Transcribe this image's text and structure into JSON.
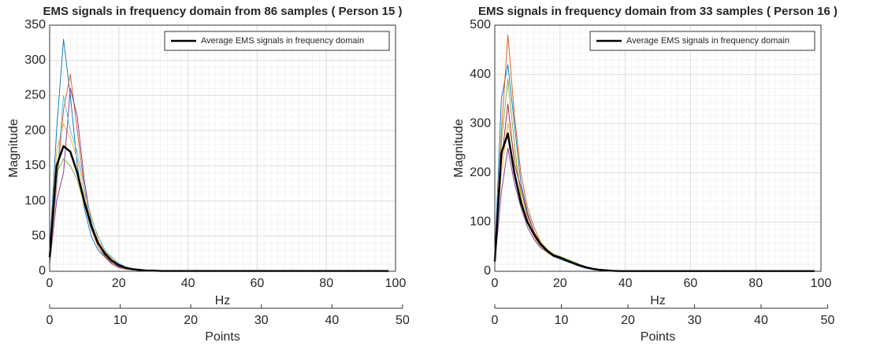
{
  "chart_data": [
    {
      "type": "line",
      "title": "EMS signals in frequency domain from 86 samples ( Person 15 )",
      "xlabel": "Hz",
      "ylabel": "Magnitude",
      "x2label": "Points",
      "x": [
        0,
        2,
        4,
        6,
        8,
        10,
        12,
        14,
        16,
        18,
        20,
        22,
        24,
        26,
        28,
        30,
        32,
        34,
        36,
        38,
        40,
        50,
        60,
        70,
        80,
        90,
        98
      ],
      "xlim": [
        0,
        100
      ],
      "xticks": [
        0,
        20,
        40,
        60,
        80,
        100
      ],
      "x2lim": [
        0,
        49
      ],
      "x2ticks": [
        0,
        10,
        20,
        30,
        40,
        50
      ],
      "ylim": [
        0,
        350
      ],
      "yticks": [
        0,
        50,
        100,
        150,
        200,
        250,
        300,
        350
      ],
      "grid": true,
      "legend": "upper right",
      "series": [
        {
          "color": "#0072bd",
          "values": [
            30,
            200,
            330,
            250,
            150,
            90,
            50,
            30,
            20,
            12,
            6,
            3,
            2,
            1,
            1,
            0.5,
            0.5,
            0.5,
            0.5,
            0.5,
            0.5,
            0.5,
            0.5,
            0.5,
            0.5,
            0.5,
            0.5
          ]
        },
        {
          "color": "#d95319",
          "values": [
            15,
            120,
            230,
            280,
            200,
            120,
            60,
            35,
            20,
            10,
            5,
            3,
            2,
            1,
            1,
            0.5,
            0.5,
            0.5,
            0.5,
            0.5,
            0.5,
            0.5,
            0.5,
            0.5,
            0.5,
            0.5,
            0.5
          ]
        },
        {
          "color": "#edb120",
          "values": [
            25,
            170,
            210,
            190,
            160,
            110,
            80,
            45,
            30,
            18,
            10,
            6,
            3,
            2,
            1,
            1,
            0.5,
            0.5,
            0.5,
            0.5,
            0.5,
            0.5,
            0.5,
            0.5,
            0.5,
            0.5,
            0.5
          ]
        },
        {
          "color": "#7e2f8e",
          "values": [
            10,
            100,
            140,
            260,
            220,
            130,
            70,
            40,
            22,
            12,
            7,
            4,
            2,
            1,
            1,
            0.5,
            0.5,
            0.5,
            0.5,
            0.5,
            0.5,
            0.5,
            0.5,
            0.5,
            0.5,
            0.5,
            0.5
          ]
        },
        {
          "color": "#77ac30",
          "values": [
            20,
            140,
            160,
            150,
            130,
            95,
            60,
            40,
            28,
            16,
            9,
            5,
            3,
            2,
            1,
            1,
            0.5,
            0.5,
            0.5,
            0.5,
            0.5,
            0.5,
            0.5,
            0.5,
            0.5,
            0.5,
            0.5
          ]
        },
        {
          "color": "#4dbeee",
          "values": [
            18,
            130,
            250,
            200,
            170,
            120,
            75,
            50,
            30,
            20,
            12,
            6,
            3,
            2,
            1,
            1,
            0.5,
            0.5,
            0.5,
            0.5,
            0.5,
            0.5,
            0.5,
            0.5,
            0.5,
            0.5,
            0.5
          ]
        },
        {
          "name": "Average EMS signals in frequency domain",
          "color": "#000000",
          "width": 2.5,
          "values": [
            20,
            150,
            178,
            170,
            140,
            100,
            65,
            40,
            25,
            15,
            9,
            5,
            3,
            2,
            1,
            1,
            0.5,
            0.5,
            0.5,
            0.5,
            0.5,
            0.5,
            0.5,
            0.5,
            0.5,
            0.5,
            0.5
          ]
        }
      ]
    },
    {
      "type": "line",
      "title": "EMS signals in frequency domain from 33 samples ( Person 16 )",
      "xlabel": "Hz",
      "ylabel": "Magnitude",
      "x2label": "Points",
      "x": [
        0,
        2,
        4,
        6,
        8,
        10,
        12,
        14,
        16,
        18,
        20,
        22,
        24,
        26,
        28,
        30,
        32,
        34,
        36,
        38,
        40,
        50,
        60,
        70,
        80,
        90,
        98
      ],
      "xlim": [
        0,
        100
      ],
      "xticks": [
        0,
        20,
        40,
        60,
        80,
        100
      ],
      "x2lim": [
        0,
        49
      ],
      "x2ticks": [
        0,
        10,
        20,
        30,
        40,
        50
      ],
      "ylim": [
        0,
        500
      ],
      "yticks": [
        0,
        100,
        200,
        300,
        400,
        500
      ],
      "grid": true,
      "legend": "upper right",
      "series": [
        {
          "color": "#0072bd",
          "values": [
            30,
            350,
            420,
            300,
            180,
            120,
            80,
            55,
            40,
            30,
            25,
            20,
            15,
            10,
            6,
            4,
            2,
            1,
            1,
            0.5,
            0.5,
            0.5,
            0.5,
            0.5,
            0.5,
            0.5,
            0.5
          ]
        },
        {
          "color": "#d95319",
          "values": [
            20,
            280,
            480,
            320,
            200,
            130,
            90,
            60,
            45,
            35,
            28,
            22,
            16,
            12,
            8,
            5,
            3,
            2,
            1,
            0.5,
            0.5,
            0.5,
            0.5,
            0.5,
            0.5,
            0.5,
            0.5
          ]
        },
        {
          "color": "#edb120",
          "values": [
            25,
            200,
            300,
            240,
            160,
            110,
            70,
            50,
            38,
            30,
            30,
            24,
            18,
            12,
            8,
            5,
            3,
            2,
            1,
            0.5,
            0.5,
            0.5,
            0.5,
            0.5,
            0.5,
            0.5,
            0.5
          ]
        },
        {
          "color": "#7e2f8e",
          "values": [
            15,
            160,
            250,
            180,
            130,
            90,
            65,
            48,
            40,
            30,
            26,
            22,
            17,
            13,
            9,
            6,
            4,
            2,
            1,
            0.5,
            0.5,
            0.5,
            0.5,
            0.5,
            0.5,
            0.5,
            0.5
          ]
        },
        {
          "color": "#77ac30",
          "values": [
            22,
            260,
            390,
            260,
            150,
            100,
            75,
            60,
            45,
            35,
            30,
            25,
            20,
            14,
            9,
            5,
            3,
            2,
            1,
            0.5,
            0.5,
            0.5,
            0.5,
            0.5,
            0.5,
            0.5,
            0.5
          ]
        },
        {
          "color": "#a2142f",
          "values": [
            18,
            220,
            340,
            220,
            170,
            115,
            80,
            58,
            42,
            33,
            27,
            21,
            16,
            12,
            8,
            5,
            3,
            2,
            1,
            0.5,
            0.5,
            0.5,
            0.5,
            0.5,
            0.5,
            0.5,
            0.5
          ]
        },
        {
          "name": "Average EMS signals in frequency domain",
          "color": "#000000",
          "width": 2.5,
          "values": [
            20,
            240,
            280,
            200,
            140,
            100,
            75,
            55,
            42,
            32,
            28,
            22,
            17,
            12,
            8,
            5,
            3,
            2,
            1,
            0.5,
            0.5,
            0.5,
            0.5,
            0.5,
            0.5,
            0.5,
            0.5
          ]
        }
      ]
    }
  ]
}
